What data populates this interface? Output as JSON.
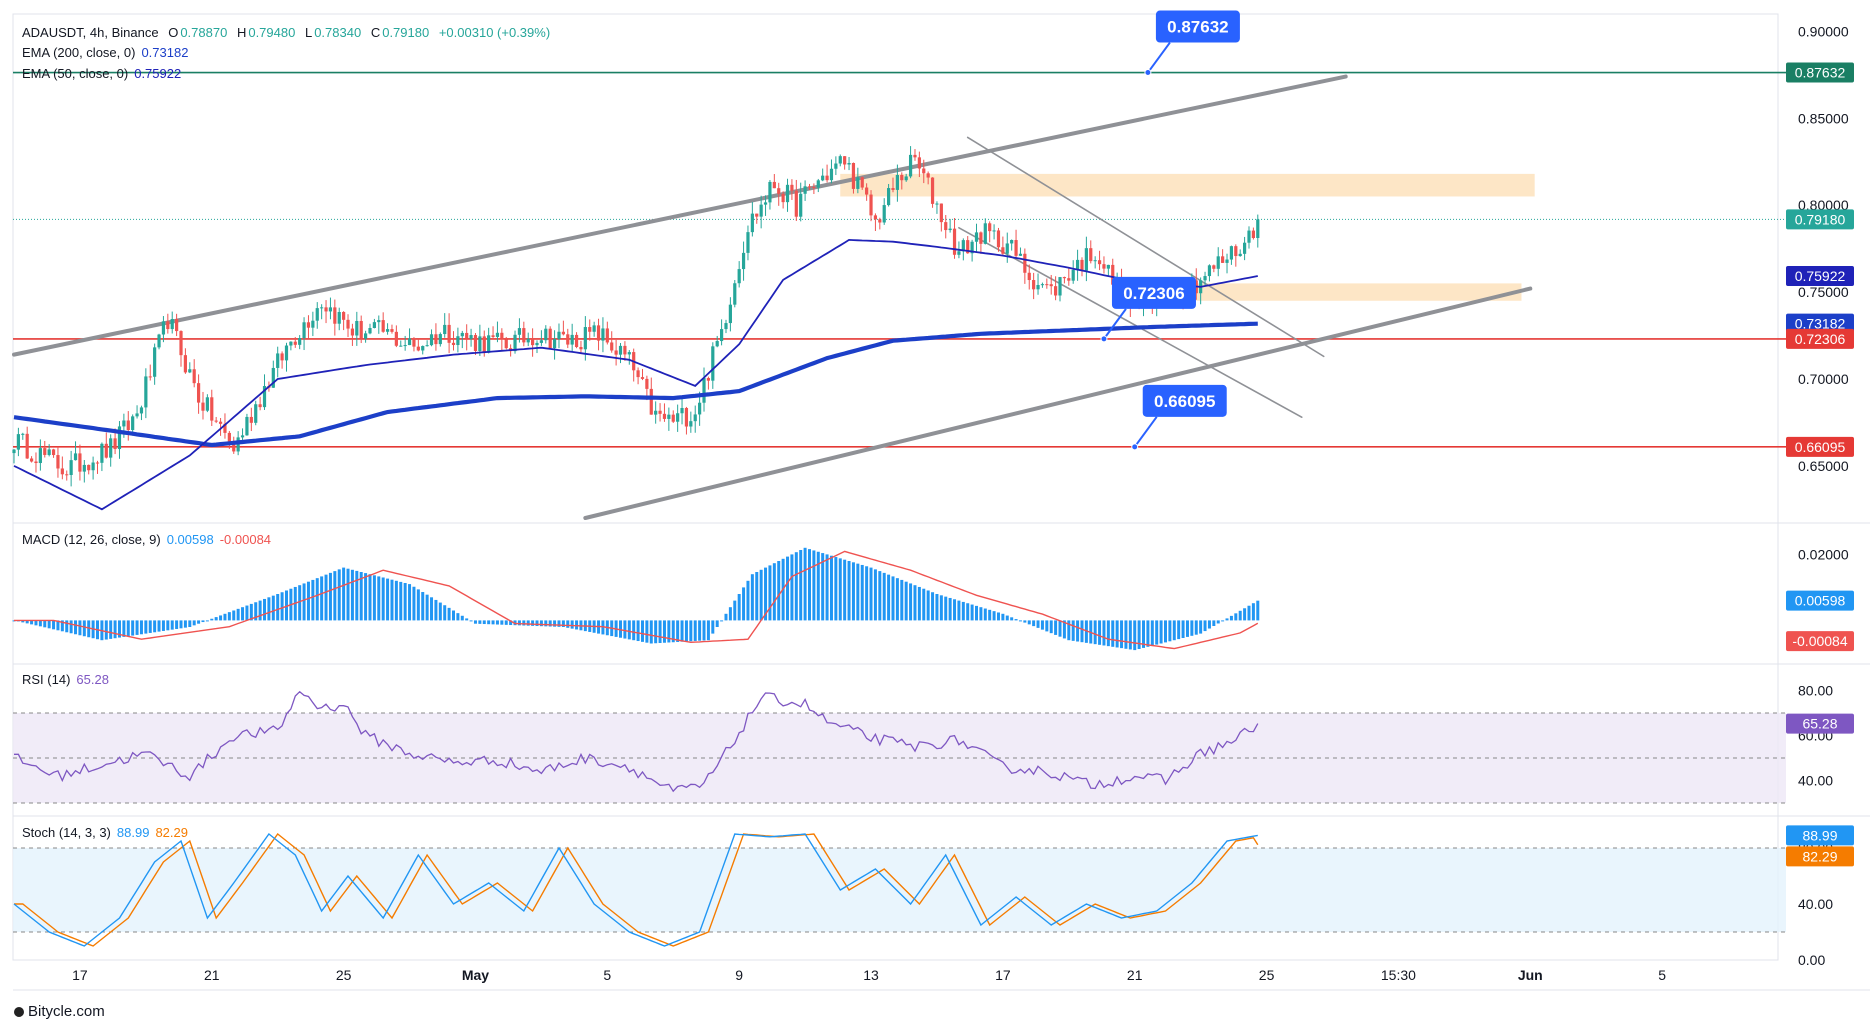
{
  "header": {
    "symbol": "ADAUSDT, 4h, Binance",
    "o_label": "O",
    "o_value": "0.78870",
    "h_label": "H",
    "h_value": "0.79480",
    "l_label": "L",
    "l_value": "0.78340",
    "c_label": "C",
    "c_value": "0.79180",
    "change": "+0.00310 (+0.39%)",
    "ema200_label": "EMA (200, close, 0)",
    "ema200_value": "0.73182",
    "ema50_label": "EMA (50, close, 0)",
    "ema50_value": "0.75922"
  },
  "indicators": {
    "macd_label": "MACD (12, 26, close, 9)",
    "macd_value": "0.00598",
    "macd_signal": "-0.00084",
    "rsi_label": "RSI (14)",
    "rsi_value": "65.28",
    "stoch_label": "Stoch (14, 3, 3)",
    "stoch_k": "88.99",
    "stoch_d": "82.29"
  },
  "footer": {
    "brand": "Bitycle.com"
  },
  "colors": {
    "up": "#26a69a",
    "down": "#ef5350",
    "ema50": "#1f22b8",
    "ema200": "#1c3fc8",
    "level_red": "#e53935",
    "level_green": "#1a7f64",
    "callout": "#2962ff",
    "channel": "#8f9196",
    "zone": "#fde3c0",
    "rsi": "#7e57c2",
    "stoch_k": "#2196f3",
    "stoch_d": "#f57c00"
  },
  "chart_data": {
    "type": "candlestick",
    "symbol": "ADAUSDT",
    "timeframe": "4h",
    "exchange": "Binance",
    "price_axis": {
      "ylim": [
        0.62,
        0.91
      ],
      "ticks": [
        "0.90000",
        "0.85000",
        "0.80000",
        "0.75000",
        "0.70000",
        "0.65000"
      ]
    },
    "x_ticks": [
      "17",
      "21",
      "25",
      "May",
      "5",
      "9",
      "13",
      "17",
      "21",
      "25",
      "15:30",
      "Jun",
      "5"
    ],
    "x_tick_bar_index": [
      15,
      45,
      75,
      105,
      135,
      165,
      195,
      225,
      255,
      285,
      315,
      345,
      375
    ],
    "close_anchors": [
      [
        0,
        0.665
      ],
      [
        12,
        0.648
      ],
      [
        22,
        0.66
      ],
      [
        28,
        0.68
      ],
      [
        35,
        0.735
      ],
      [
        42,
        0.69
      ],
      [
        50,
        0.66
      ],
      [
        57,
        0.695
      ],
      [
        63,
        0.722
      ],
      [
        70,
        0.745
      ],
      [
        77,
        0.728
      ],
      [
        84,
        0.727
      ],
      [
        91,
        0.718
      ],
      [
        98,
        0.728
      ],
      [
        105,
        0.722
      ],
      [
        112,
        0.72
      ],
      [
        119,
        0.726
      ],
      [
        126,
        0.722
      ],
      [
        133,
        0.726
      ],
      [
        140,
        0.71
      ],
      [
        146,
        0.678
      ],
      [
        150,
        0.676
      ],
      [
        155,
        0.682
      ],
      [
        161,
        0.728
      ],
      [
        167,
        0.788
      ],
      [
        173,
        0.812
      ],
      [
        178,
        0.8
      ],
      [
        183,
        0.814
      ],
      [
        189,
        0.826
      ],
      [
        193,
        0.806
      ],
      [
        196,
        0.79
      ],
      [
        201,
        0.814
      ],
      [
        205,
        0.826
      ],
      [
        210,
        0.8
      ],
      [
        215,
        0.772
      ],
      [
        220,
        0.784
      ],
      [
        226,
        0.778
      ],
      [
        231,
        0.76
      ],
      [
        236,
        0.75
      ],
      [
        241,
        0.764
      ],
      [
        246,
        0.774
      ],
      [
        251,
        0.752
      ],
      [
        255,
        0.744
      ],
      [
        259,
        0.741
      ],
      [
        263,
        0.752
      ],
      [
        268,
        0.754
      ],
      [
        272,
        0.762
      ],
      [
        276,
        0.77
      ],
      [
        280,
        0.778
      ],
      [
        283,
        0.7918
      ]
    ],
    "ema50_anchors": [
      [
        0,
        0.65
      ],
      [
        20,
        0.625
      ],
      [
        40,
        0.656
      ],
      [
        60,
        0.7
      ],
      [
        80,
        0.708
      ],
      [
        100,
        0.714
      ],
      [
        120,
        0.718
      ],
      [
        140,
        0.711
      ],
      [
        155,
        0.696
      ],
      [
        165,
        0.72
      ],
      [
        175,
        0.757
      ],
      [
        190,
        0.78
      ],
      [
        200,
        0.779
      ],
      [
        210,
        0.776
      ],
      [
        225,
        0.771
      ],
      [
        240,
        0.764
      ],
      [
        255,
        0.756
      ],
      [
        270,
        0.753
      ],
      [
        283,
        0.75922
      ]
    ],
    "ema200_anchors": [
      [
        0,
        0.678
      ],
      [
        20,
        0.671
      ],
      [
        45,
        0.662
      ],
      [
        65,
        0.667
      ],
      [
        85,
        0.681
      ],
      [
        110,
        0.689
      ],
      [
        130,
        0.69
      ],
      [
        150,
        0.689
      ],
      [
        165,
        0.693
      ],
      [
        185,
        0.712
      ],
      [
        200,
        0.722
      ],
      [
        220,
        0.726
      ],
      [
        240,
        0.728
      ],
      [
        260,
        0.73
      ],
      [
        283,
        0.73182
      ]
    ],
    "levels": [
      {
        "name": "resistance",
        "value": 0.87632,
        "label": "0.87632",
        "color": "#1a7f64",
        "callout": "0.87632"
      },
      {
        "name": "ema50",
        "value": 0.75922,
        "label": "0.75922",
        "color": "#1f22b8"
      },
      {
        "name": "ema200",
        "value": 0.73182,
        "label": "0.73182",
        "color": "#1c3fc8"
      },
      {
        "name": "support-1",
        "value": 0.72306,
        "label": "0.72306",
        "color": "#e53935",
        "callout": "0.72306"
      },
      {
        "name": "support-2",
        "value": 0.66095,
        "label": "0.66095",
        "color": "#e53935",
        "callout": "0.66095"
      },
      {
        "name": "last-price",
        "value": 0.7918,
        "label": "0.79180",
        "color": "#26a69a"
      }
    ],
    "channel_upper": [
      [
        0,
        0.714
      ],
      [
        303,
        0.874
      ]
    ],
    "channel_lower": [
      [
        130,
        0.62
      ],
      [
        345,
        0.752
      ]
    ],
    "falling_channel_upper": [
      [
        217,
        0.839
      ],
      [
        298,
        0.713
      ]
    ],
    "falling_channel_lower": [
      [
        215,
        0.787
      ],
      [
        293,
        0.678
      ]
    ],
    "zones": [
      {
        "name": "supply-zone",
        "from_bar": 188,
        "to_bar": 346,
        "low": 0.805,
        "high": 0.818
      },
      {
        "name": "demand-zone",
        "from_bar": 268,
        "to_bar": 343,
        "low": 0.745,
        "high": 0.755
      }
    ],
    "macd": {
      "ylim": [
        -0.012,
        0.028
      ],
      "ticks": [
        "0.02000"
      ],
      "macd_value": 0.00598,
      "signal_value": -0.00084,
      "anchors": [
        [
          0,
          0.0
        ],
        [
          20,
          -0.006
        ],
        [
          40,
          -0.002
        ],
        [
          60,
          0.008
        ],
        [
          75,
          0.016
        ],
        [
          90,
          0.011
        ],
        [
          105,
          -0.001
        ],
        [
          125,
          -0.002
        ],
        [
          145,
          -0.007
        ],
        [
          158,
          -0.006
        ],
        [
          168,
          0.014
        ],
        [
          180,
          0.022
        ],
        [
          195,
          0.016
        ],
        [
          210,
          0.008
        ],
        [
          225,
          0.002
        ],
        [
          240,
          -0.006
        ],
        [
          255,
          -0.009
        ],
        [
          270,
          -0.004
        ],
        [
          283,
          0.00598
        ]
      ]
    },
    "rsi": {
      "ylim": [
        26,
        90
      ],
      "ticks": [
        "80.00",
        "60.00",
        "40.00"
      ],
      "band": [
        30,
        70
      ],
      "value": 65.28,
      "anchors": [
        [
          0,
          50
        ],
        [
          10,
          42
        ],
        [
          20,
          47
        ],
        [
          30,
          52
        ],
        [
          40,
          42
        ],
        [
          50,
          60
        ],
        [
          60,
          62
        ],
        [
          65,
          80
        ],
        [
          70,
          72
        ],
        [
          75,
          74
        ],
        [
          80,
          60
        ],
        [
          90,
          52
        ],
        [
          100,
          48
        ],
        [
          110,
          49
        ],
        [
          120,
          44
        ],
        [
          130,
          50
        ],
        [
          140,
          46
        ],
        [
          150,
          35
        ],
        [
          157,
          38
        ],
        [
          163,
          55
        ],
        [
          170,
          77
        ],
        [
          180,
          74
        ],
        [
          185,
          66
        ],
        [
          195,
          59
        ],
        [
          205,
          55
        ],
        [
          215,
          58
        ],
        [
          225,
          46
        ],
        [
          235,
          44
        ],
        [
          245,
          38
        ],
        [
          255,
          42
        ],
        [
          262,
          40
        ],
        [
          270,
          52
        ],
        [
          278,
          58
        ],
        [
          283,
          65.28
        ]
      ]
    },
    "stoch": {
      "ylim": [
        0,
        100
      ],
      "ticks": [
        "80.00",
        "40.00",
        "0.00"
      ],
      "band": [
        20,
        80
      ],
      "k_value": 88.99,
      "d_value": 82.29,
      "anchors": [
        [
          0,
          40
        ],
        [
          8,
          20
        ],
        [
          16,
          10
        ],
        [
          24,
          30
        ],
        [
          32,
          70
        ],
        [
          38,
          85
        ],
        [
          44,
          30
        ],
        [
          50,
          55
        ],
        [
          58,
          90
        ],
        [
          64,
          75
        ],
        [
          70,
          35
        ],
        [
          76,
          60
        ],
        [
          84,
          30
        ],
        [
          92,
          75
        ],
        [
          100,
          40
        ],
        [
          108,
          55
        ],
        [
          116,
          35
        ],
        [
          124,
          80
        ],
        [
          132,
          40
        ],
        [
          140,
          20
        ],
        [
          148,
          10
        ],
        [
          156,
          20
        ],
        [
          164,
          90
        ],
        [
          172,
          88
        ],
        [
          180,
          90
        ],
        [
          188,
          50
        ],
        [
          196,
          65
        ],
        [
          204,
          40
        ],
        [
          212,
          75
        ],
        [
          220,
          25
        ],
        [
          228,
          45
        ],
        [
          236,
          25
        ],
        [
          244,
          40
        ],
        [
          252,
          30
        ],
        [
          260,
          35
        ],
        [
          268,
          55
        ],
        [
          276,
          85
        ],
        [
          283,
          88.99
        ]
      ]
    }
  }
}
